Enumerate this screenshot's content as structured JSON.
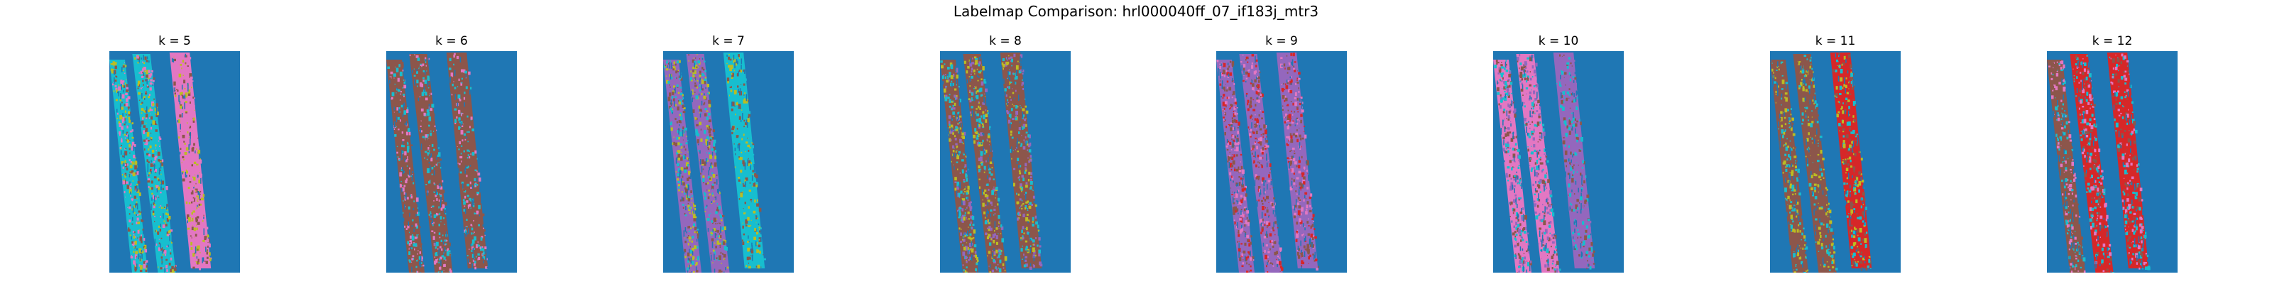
{
  "figure": {
    "title": "Labelmap Comparison: hrl000040ff_07_if183j_mtr3"
  },
  "colors": {
    "background": "#1f77b4",
    "orange": "#ff7f0e",
    "green": "#2ca02c",
    "red": "#d62728",
    "purple": "#9467bd",
    "brown": "#8c564b",
    "pink": "#e377c2",
    "gray": "#7f7f7f",
    "olive": "#bcbd22",
    "cyan": "#17becf"
  },
  "panels": [
    {
      "title": "k = 5",
      "palette": [
        "cyan",
        "pink",
        "olive",
        "brown"
      ],
      "main": [
        0,
        0,
        1
      ]
    },
    {
      "title": "k = 6",
      "palette": [
        "olive",
        "brown",
        "pink",
        "cyan"
      ],
      "main": [
        1,
        1,
        1
      ]
    },
    {
      "title": "k = 7",
      "palette": [
        "purple",
        "cyan",
        "olive",
        "brown"
      ],
      "main": [
        0,
        0,
        1
      ]
    },
    {
      "title": "k = 8",
      "palette": [
        "brown",
        "olive",
        "purple",
        "cyan"
      ],
      "main": [
        0,
        0,
        0
      ]
    },
    {
      "title": "k = 9",
      "palette": [
        "purple",
        "brown",
        "red",
        "pink"
      ],
      "main": [
        0,
        0,
        0
      ]
    },
    {
      "title": "k = 10",
      "palette": [
        "pink",
        "cyan",
        "purple",
        "brown"
      ],
      "main": [
        0,
        0,
        2
      ]
    },
    {
      "title": "k = 11",
      "palette": [
        "red",
        "brown",
        "cyan",
        "olive"
      ],
      "main": [
        1,
        1,
        0
      ]
    },
    {
      "title": "k = 12",
      "palette": [
        "red",
        "brown",
        "cyan",
        "pink"
      ],
      "main": [
        1,
        0,
        0
      ]
    }
  ]
}
